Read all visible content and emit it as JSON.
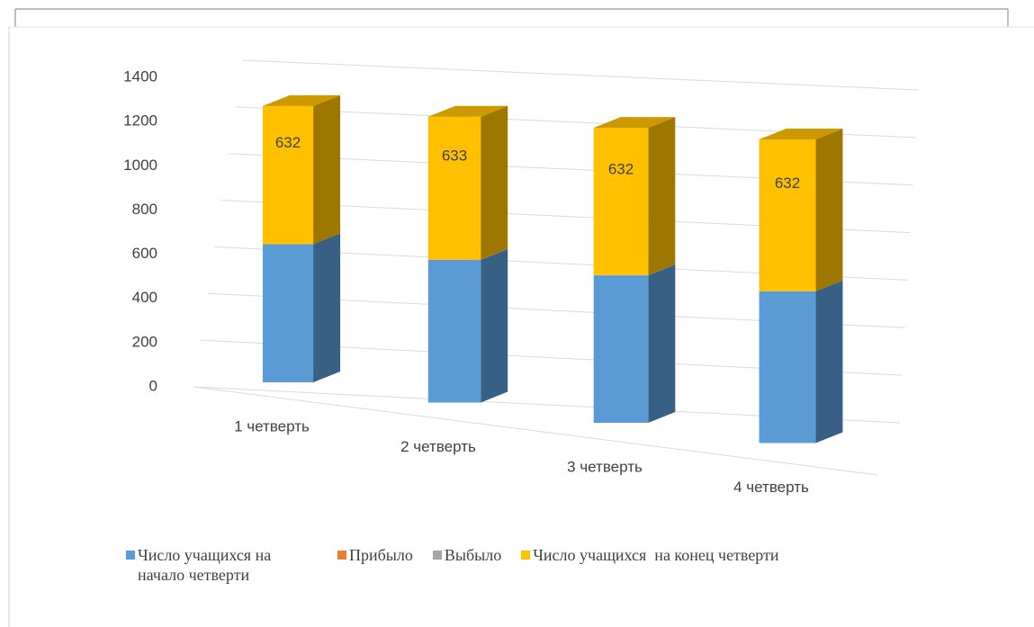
{
  "chart_data": {
    "type": "bar3d_stacked",
    "categories": [
      "1 четверть",
      "2 четверть",
      "3 четверть",
      "4 четверть"
    ],
    "series": [
      {
        "name": "Число учащихся на начало четверти",
        "color": "#5b9bd5",
        "values": [
          632,
          632,
          633,
          632
        ]
      },
      {
        "name": "Прибыло",
        "color": "#ed7d31",
        "values": [
          0,
          1,
          0,
          0
        ]
      },
      {
        "name": "Выбыло",
        "color": "#a5a5a5",
        "values": [
          0,
          0,
          1,
          0
        ]
      },
      {
        "name": "Число учащихся  на конец четверти",
        "color": "#ffc000",
        "values": [
          632,
          633,
          632,
          632
        ],
        "data_labels": true
      }
    ],
    "ylim": [
      0,
      1400
    ],
    "yticks": [
      0,
      200,
      400,
      600,
      800,
      1000,
      1200,
      1400
    ],
    "grid": true,
    "legend": "bottom"
  }
}
